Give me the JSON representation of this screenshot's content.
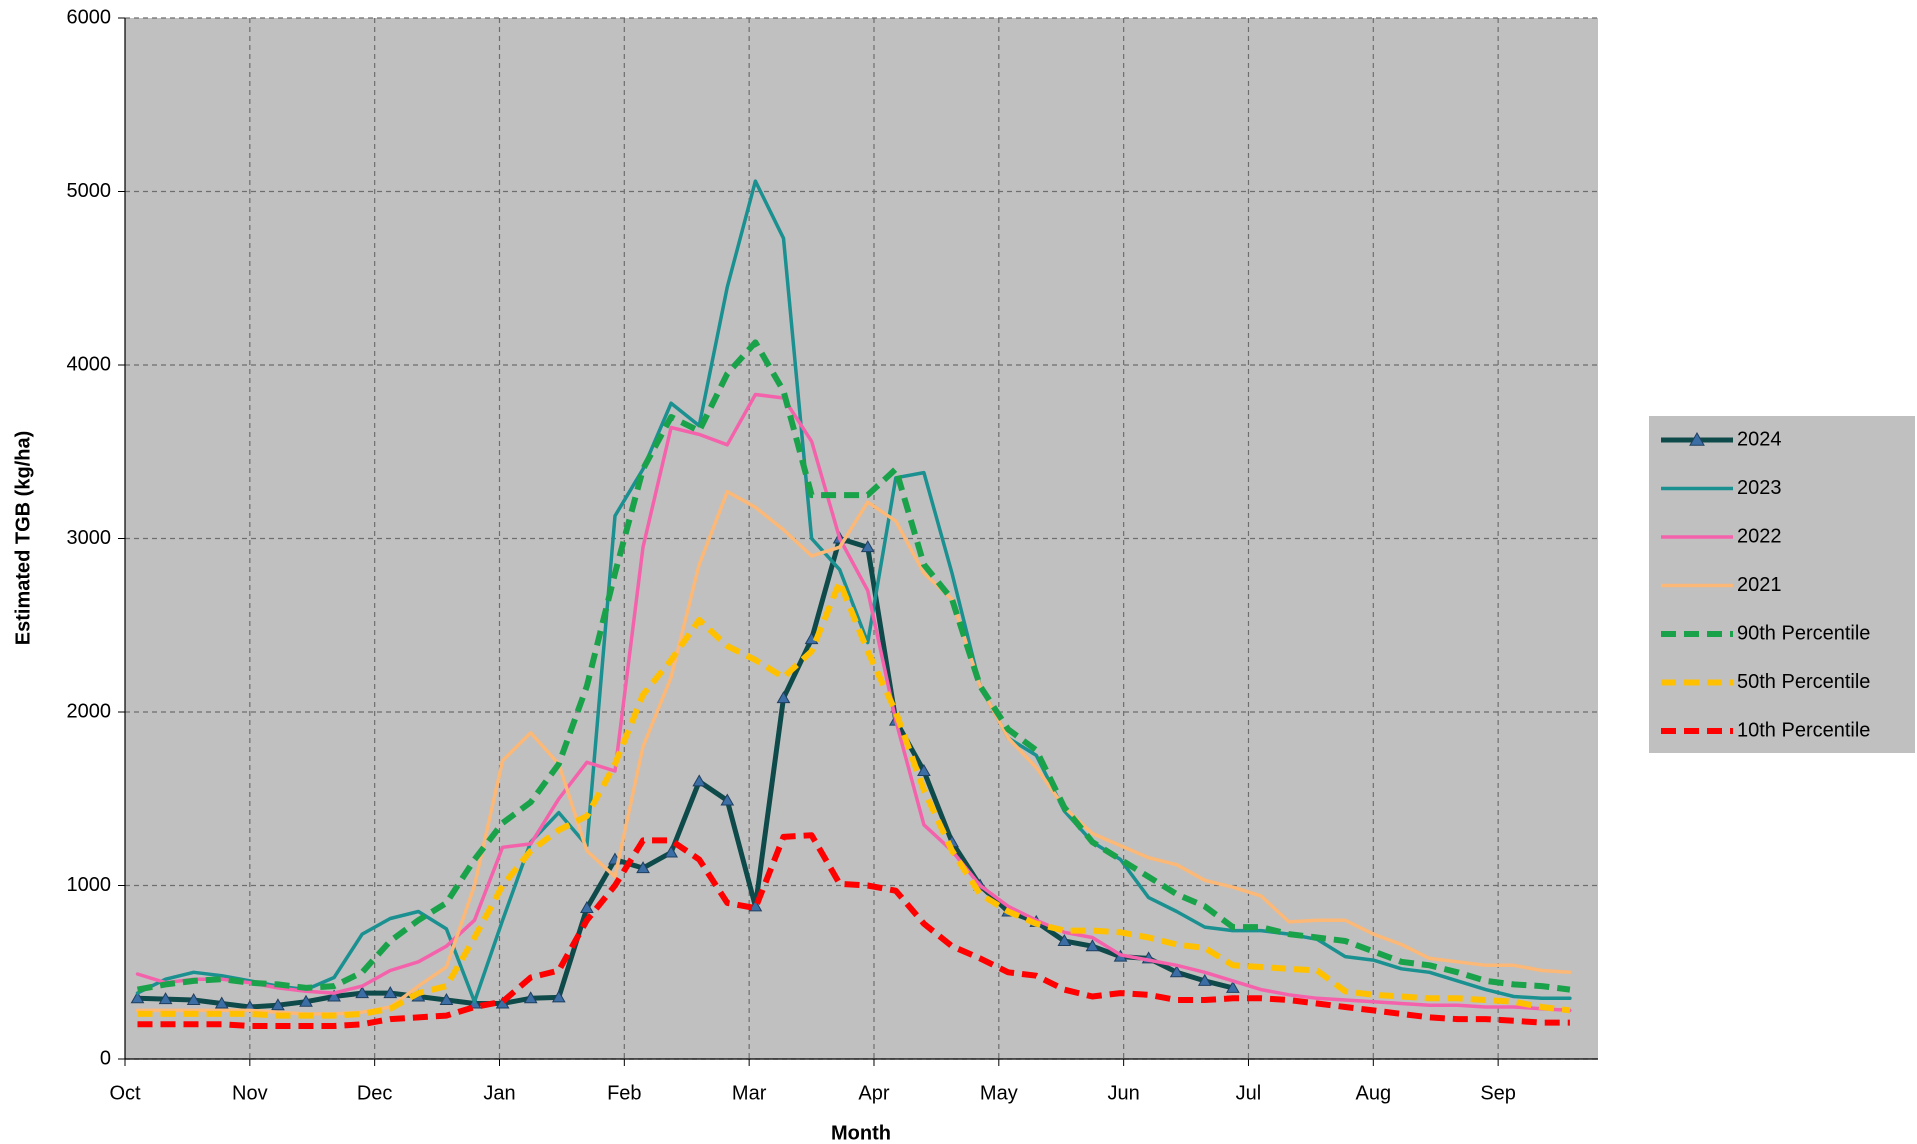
{
  "chart_data": {
    "type": "line",
    "xlabel": "Month",
    "ylabel": "Estimated TGB (kg/ha)",
    "xlim": [
      0,
      11.8
    ],
    "ylim": [
      0,
      6000
    ],
    "xticks": [
      {
        "value": 0,
        "label": "Oct"
      },
      {
        "value": 1,
        "label": "Nov"
      },
      {
        "value": 2,
        "label": "Dec"
      },
      {
        "value": 3,
        "label": "Jan"
      },
      {
        "value": 4,
        "label": "Feb"
      },
      {
        "value": 5,
        "label": "Mar"
      },
      {
        "value": 6,
        "label": "Apr"
      },
      {
        "value": 7,
        "label": "May"
      },
      {
        "value": 8,
        "label": "Jun"
      },
      {
        "value": 9,
        "label": "Jul"
      },
      {
        "value": 10,
        "label": "Aug"
      },
      {
        "value": 11,
        "label": "Sep"
      }
    ],
    "yticks": [
      0,
      1000,
      2000,
      3000,
      4000,
      5000,
      6000
    ],
    "grid": true,
    "legend": "right",
    "background": "#c0c0c0",
    "x": [
      0.1,
      0.325,
      0.55,
      0.775,
      1.0,
      1.225,
      1.45,
      1.675,
      1.9,
      2.125,
      2.35,
      2.575,
      2.8,
      3.025,
      3.25,
      3.475,
      3.7,
      3.925,
      4.15,
      4.375,
      4.6,
      4.825,
      5.05,
      5.275,
      5.5,
      5.725,
      5.95,
      6.175,
      6.4,
      6.625,
      6.85,
      7.075,
      7.3,
      7.525,
      7.75,
      7.975,
      8.2,
      8.425,
      8.65,
      8.875,
      9.1,
      9.325,
      9.55,
      9.775,
      10.0,
      10.225,
      10.45,
      10.675,
      10.9,
      11.125,
      11.35,
      11.575
    ],
    "series": [
      {
        "name": "2024",
        "color": "#0e4a4a",
        "linestyle": "solid",
        "width": 5,
        "marker": "triangle",
        "marker_color": "#3a6ea5",
        "values": [
          350,
          345,
          340,
          320,
          300,
          310,
          330,
          360,
          380,
          380,
          360,
          340,
          320,
          320,
          350,
          355,
          870,
          1150,
          1100,
          1190,
          1600,
          1490,
          880,
          2080,
          2420,
          3000,
          2950,
          1950,
          1660,
          1250,
          1000,
          850,
          790,
          680,
          650,
          590,
          580,
          500,
          450,
          410,
          null,
          null,
          null,
          null,
          null,
          null,
          null,
          null,
          null,
          null,
          null,
          null
        ]
      },
      {
        "name": "2023",
        "color": "#1a9090",
        "linestyle": "solid",
        "width": 3.5,
        "values": [
          380,
          460,
          500,
          480,
          450,
          420,
          400,
          470,
          720,
          810,
          850,
          750,
          330,
          800,
          1250,
          1420,
          1230,
          3130,
          3400,
          3780,
          3650,
          4450,
          5060,
          4730,
          3000,
          2820,
          2400,
          3350,
          3380,
          2800,
          2150,
          1850,
          1750,
          1430,
          1250,
          1150,
          930,
          850,
          760,
          740,
          740,
          720,
          690,
          590,
          570,
          520,
          500,
          450,
          400,
          360,
          350,
          350
        ]
      },
      {
        "name": "2022",
        "color": "#f462ab",
        "linestyle": "solid",
        "width": 3.5,
        "values": [
          490,
          440,
          460,
          460,
          440,
          410,
          390,
          380,
          420,
          510,
          560,
          650,
          800,
          1220,
          1240,
          1500,
          1710,
          1660,
          2950,
          3640,
          3600,
          3540,
          3830,
          3810,
          3560,
          3000,
          2700,
          1950,
          1350,
          1200,
          1000,
          880,
          800,
          730,
          700,
          600,
          570,
          540,
          500,
          450,
          400,
          370,
          350,
          340,
          330,
          320,
          310,
          310,
          300,
          300,
          290,
          280
        ]
      },
      {
        "name": "2021",
        "color": "#fbb877",
        "linestyle": "solid",
        "width": 3.5,
        "values": [
          280,
          280,
          280,
          280,
          280,
          270,
          260,
          260,
          270,
          300,
          420,
          530,
          1000,
          1720,
          1880,
          1700,
          1200,
          1050,
          1800,
          2200,
          2850,
          3270,
          3180,
          3050,
          2900,
          2950,
          3210,
          3100,
          2800,
          2650,
          2150,
          1850,
          1680,
          1450,
          1300,
          1230,
          1160,
          1120,
          1030,
          990,
          940,
          790,
          800,
          800,
          720,
          660,
          580,
          560,
          540,
          540,
          510,
          500
        ]
      },
      {
        "name": "90th Percentile",
        "color": "#1aa24a",
        "linestyle": "dashed",
        "width": 6,
        "values": [
          400,
          430,
          450,
          460,
          440,
          430,
          410,
          420,
          500,
          680,
          800,
          900,
          1150,
          1360,
          1480,
          1700,
          2150,
          2800,
          3400,
          3700,
          3620,
          3950,
          4130,
          3850,
          3250,
          3250,
          3250,
          3400,
          2850,
          2650,
          2150,
          1900,
          1780,
          1450,
          1250,
          1150,
          1050,
          950,
          880,
          760,
          760,
          720,
          700,
          680,
          620,
          560,
          540,
          500,
          450,
          430,
          420,
          400
        ]
      },
      {
        "name": "50th Percentile",
        "color": "#ffc000",
        "linestyle": "dashed",
        "width": 6,
        "values": [
          260,
          260,
          260,
          260,
          260,
          250,
          250,
          250,
          260,
          290,
          380,
          420,
          700,
          1000,
          1200,
          1320,
          1400,
          1700,
          2100,
          2300,
          2530,
          2380,
          2300,
          2200,
          2350,
          2750,
          2350,
          2000,
          1550,
          1200,
          950,
          850,
          780,
          740,
          740,
          730,
          700,
          660,
          640,
          540,
          530,
          520,
          510,
          390,
          370,
          360,
          350,
          350,
          340,
          330,
          300,
          280
        ]
      },
      {
        "name": "10th Percentile",
        "color": "#ff0000",
        "linestyle": "dashed",
        "width": 6,
        "values": [
          200,
          200,
          200,
          200,
          190,
          190,
          190,
          190,
          200,
          230,
          240,
          250,
          300,
          330,
          470,
          510,
          800,
          1000,
          1260,
          1260,
          1150,
          900,
          870,
          1280,
          1290,
          1010,
          1000,
          970,
          780,
          650,
          580,
          500,
          480,
          400,
          360,
          380,
          370,
          340,
          340,
          350,
          350,
          340,
          320,
          300,
          280,
          260,
          240,
          230,
          230,
          220,
          210,
          210
        ]
      }
    ]
  }
}
